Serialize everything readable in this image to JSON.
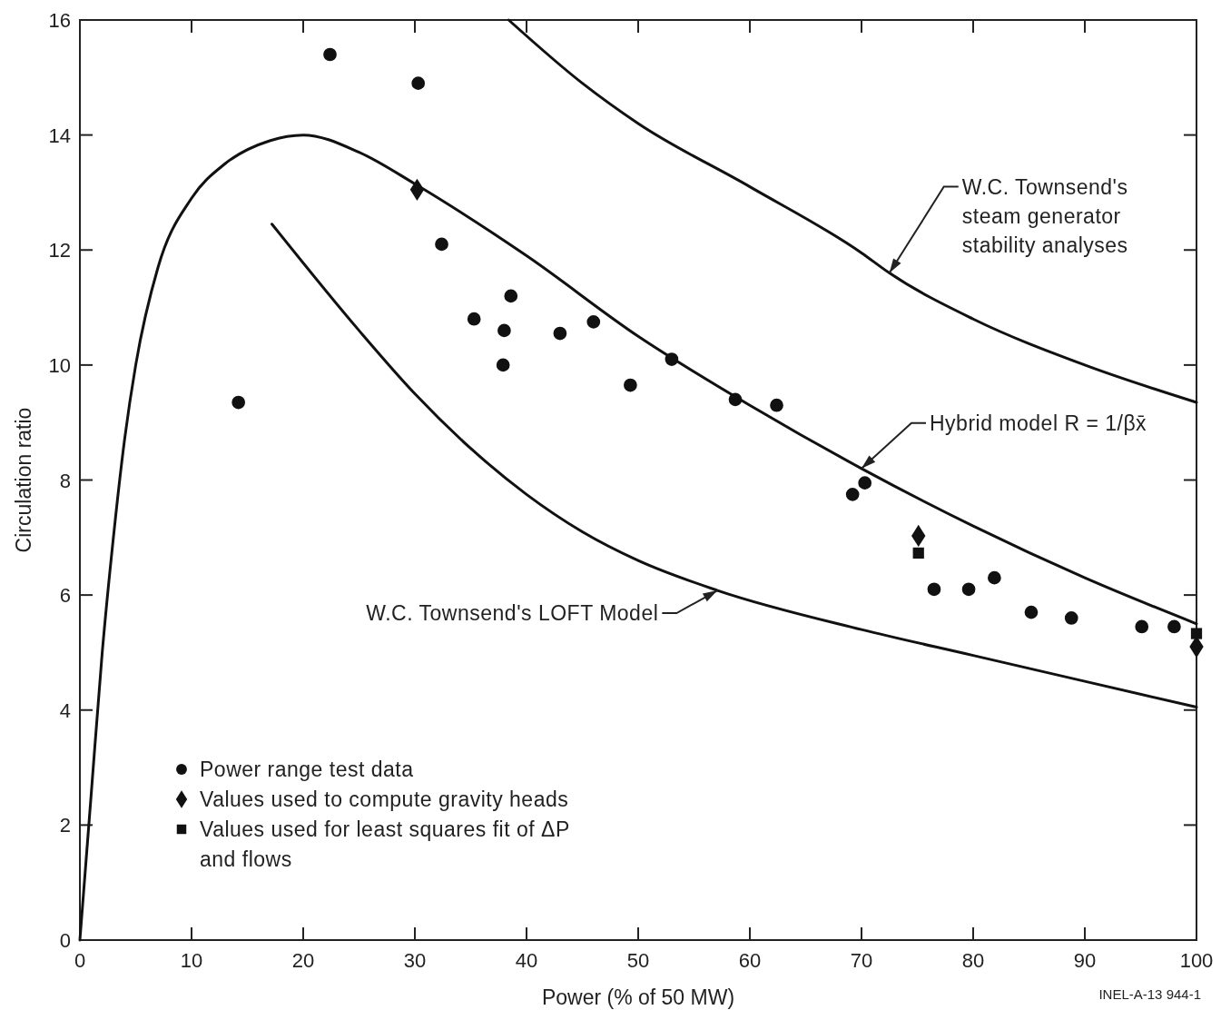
{
  "chart_data": {
    "type": "scatter",
    "xlabel": "Power (% of 50 MW)",
    "ylabel": "Circulation ratio",
    "xlim": [
      0,
      100
    ],
    "ylim": [
      0,
      16
    ],
    "xticks": [
      0,
      10,
      20,
      30,
      40,
      50,
      60,
      70,
      80,
      90,
      100
    ],
    "yticks": [
      0,
      2,
      4,
      6,
      8,
      10,
      12,
      14,
      16
    ],
    "grid": false,
    "legend": "bottom left",
    "series": [
      {
        "name": "Power range test data",
        "marker": "circle",
        "color": "#111111",
        "x": [
          14.2,
          22.4,
          30.3,
          32.4,
          35.3,
          38.0,
          37.9,
          38.6,
          43.0,
          46.0,
          49.3,
          53.0,
          58.7,
          62.4,
          69.2,
          70.3,
          76.5,
          79.6,
          81.9,
          85.2,
          88.8,
          95.1,
          98.0
        ],
        "values": [
          9.35,
          15.4,
          14.9,
          12.1,
          10.8,
          10.6,
          10.0,
          11.2,
          10.55,
          10.75,
          9.65,
          10.1,
          9.4,
          9.3,
          7.75,
          7.95,
          6.1,
          6.1,
          6.3,
          5.7,
          5.6,
          5.45,
          5.45
        ]
      },
      {
        "name": "Values used to compute gravity heads",
        "marker": "diamond",
        "color": "#111111",
        "x": [
          30.2,
          75.1,
          100
        ],
        "values": [
          13.05,
          7.03,
          5.1
        ]
      },
      {
        "name": "Values used for least squares fit of ΔP and flows",
        "marker": "square",
        "color": "#111111",
        "x": [
          75.1,
          100
        ],
        "values": [
          6.73,
          5.33
        ]
      },
      {
        "type": "line",
        "color": "#111111",
        "x": [
          38.4,
          45,
          50,
          60,
          70,
          72.5,
          80,
          90,
          100
        ],
        "values": [
          16,
          14.9,
          14.2,
          13.1,
          11.95,
          11.6,
          10.8,
          10.0,
          9.35
        ]
      },
      {
        "type": "line",
        "color": "#111111",
        "x": [
          0,
          1,
          2,
          3,
          4,
          5,
          7,
          10,
          13,
          17,
          20,
          25,
          30,
          40,
          50,
          60,
          70,
          80,
          90,
          100
        ],
        "values": [
          0,
          2.5,
          5,
          7,
          8.7,
          10,
          11.7,
          12.9,
          13.5,
          13.9,
          14.0,
          13.7,
          13.15,
          11.9,
          10.5,
          9.3,
          8.2,
          7.2,
          6.3,
          5.5
        ]
      },
      {
        "type": "line",
        "color": "#111111",
        "x": [
          17.2,
          25,
          30,
          35,
          40,
          45,
          50,
          57.1,
          70,
          80,
          90,
          100
        ],
        "values": [
          12.45,
          10.6,
          9.5,
          8.55,
          7.75,
          7.1,
          6.6,
          6.08,
          5.4,
          4.95,
          4.5,
          4.05
        ]
      }
    ],
    "annotations": [
      {
        "text": "W.C. Townsend's steam generator stability analyses",
        "x": 72.5,
        "y": 11.6
      },
      {
        "text": "Hybrid model R = 1/βx̄",
        "x": 70,
        "y": 8.2
      },
      {
        "text": "W.C. Townsend's LOFT Model",
        "x": 57.1,
        "y": 6.08
      },
      "INEL-A-13 944-1"
    ]
  }
}
